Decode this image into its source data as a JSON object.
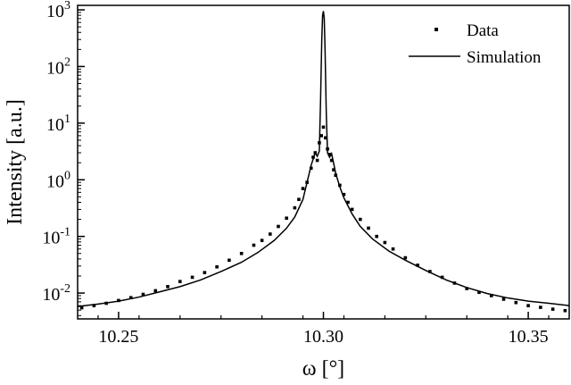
{
  "chart_data": {
    "type": "scatter",
    "title": "",
    "xlabel": "ω [°]",
    "ylabel": "Intensity [a.u.]",
    "xlim": [
      10.24,
      10.36
    ],
    "ylim": [
      0.0035,
      1200
    ],
    "y_scale": "log",
    "grid": false,
    "legend_position": "top-right",
    "x_ticks": [
      {
        "value": 10.25,
        "label": "10.25"
      },
      {
        "value": 10.3,
        "label": "10.30"
      },
      {
        "value": 10.35,
        "label": "10.35"
      }
    ],
    "y_ticks": [
      {
        "value": 0.01,
        "base": "10",
        "exp": "-2"
      },
      {
        "value": 0.1,
        "base": "10",
        "exp": "-1"
      },
      {
        "value": 1,
        "base": "10",
        "exp": "0"
      },
      {
        "value": 10,
        "base": "10",
        "exp": "1"
      },
      {
        "value": 100,
        "base": "10",
        "exp": "2"
      },
      {
        "value": 1000,
        "base": "10",
        "exp": "3"
      }
    ],
    "series": [
      {
        "name": "Data",
        "style": "points",
        "color": "#000000",
        "x": [
          10.241,
          10.244,
          10.247,
          10.25,
          10.253,
          10.256,
          10.259,
          10.262,
          10.265,
          10.268,
          10.271,
          10.274,
          10.277,
          10.28,
          10.283,
          10.285,
          10.287,
          10.289,
          10.291,
          10.293,
          10.294,
          10.295,
          10.296,
          10.297,
          10.2975,
          10.298,
          10.2985,
          10.299,
          10.2995,
          10.3,
          10.3005,
          10.301,
          10.3015,
          10.302,
          10.3025,
          10.303,
          10.304,
          10.305,
          10.306,
          10.307,
          10.309,
          10.311,
          10.313,
          10.315,
          10.317,
          10.32,
          10.323,
          10.326,
          10.329,
          10.332,
          10.335,
          10.338,
          10.341,
          10.344,
          10.347,
          10.35,
          10.353,
          10.356,
          10.359
        ],
        "y": [
          0.0055,
          0.006,
          0.0066,
          0.0074,
          0.0083,
          0.0095,
          0.011,
          0.013,
          0.016,
          0.019,
          0.023,
          0.029,
          0.038,
          0.05,
          0.07,
          0.085,
          0.11,
          0.15,
          0.21,
          0.32,
          0.45,
          0.7,
          0.9,
          1.6,
          2.5,
          3.0,
          2.2,
          4.5,
          6.0,
          8.5,
          5.5,
          3.5,
          2.8,
          2.2,
          1.5,
          1.2,
          0.8,
          0.55,
          0.4,
          0.3,
          0.2,
          0.14,
          0.1,
          0.078,
          0.06,
          0.042,
          0.031,
          0.024,
          0.019,
          0.015,
          0.012,
          0.0103,
          0.009,
          0.0078,
          0.0068,
          0.006,
          0.0056,
          0.0052,
          0.0049
        ]
      },
      {
        "name": "Simulation",
        "style": "line",
        "color": "#000000",
        "x": [
          10.24,
          10.245,
          10.25,
          10.255,
          10.26,
          10.265,
          10.27,
          10.275,
          10.28,
          10.284,
          10.288,
          10.291,
          10.293,
          10.295,
          10.296,
          10.297,
          10.298,
          10.2985,
          10.299,
          10.2993,
          10.2996,
          10.2998,
          10.3,
          10.3002,
          10.3004,
          10.3007,
          10.301,
          10.3015,
          10.302,
          10.303,
          10.304,
          10.305,
          10.307,
          10.309,
          10.312,
          10.316,
          10.32,
          10.325,
          10.33,
          10.335,
          10.34,
          10.345,
          10.35,
          10.355,
          10.36
        ],
        "y": [
          0.0058,
          0.0064,
          0.0072,
          0.0085,
          0.0105,
          0.013,
          0.017,
          0.024,
          0.035,
          0.052,
          0.085,
          0.14,
          0.22,
          0.45,
          0.9,
          1.8,
          3.0,
          2.6,
          3.2,
          25,
          300,
          800,
          950,
          700,
          200,
          15,
          3.0,
          2.5,
          2.9,
          1.3,
          0.75,
          0.48,
          0.25,
          0.15,
          0.09,
          0.055,
          0.038,
          0.025,
          0.017,
          0.0125,
          0.0098,
          0.0082,
          0.0072,
          0.0066,
          0.006
        ]
      }
    ]
  }
}
